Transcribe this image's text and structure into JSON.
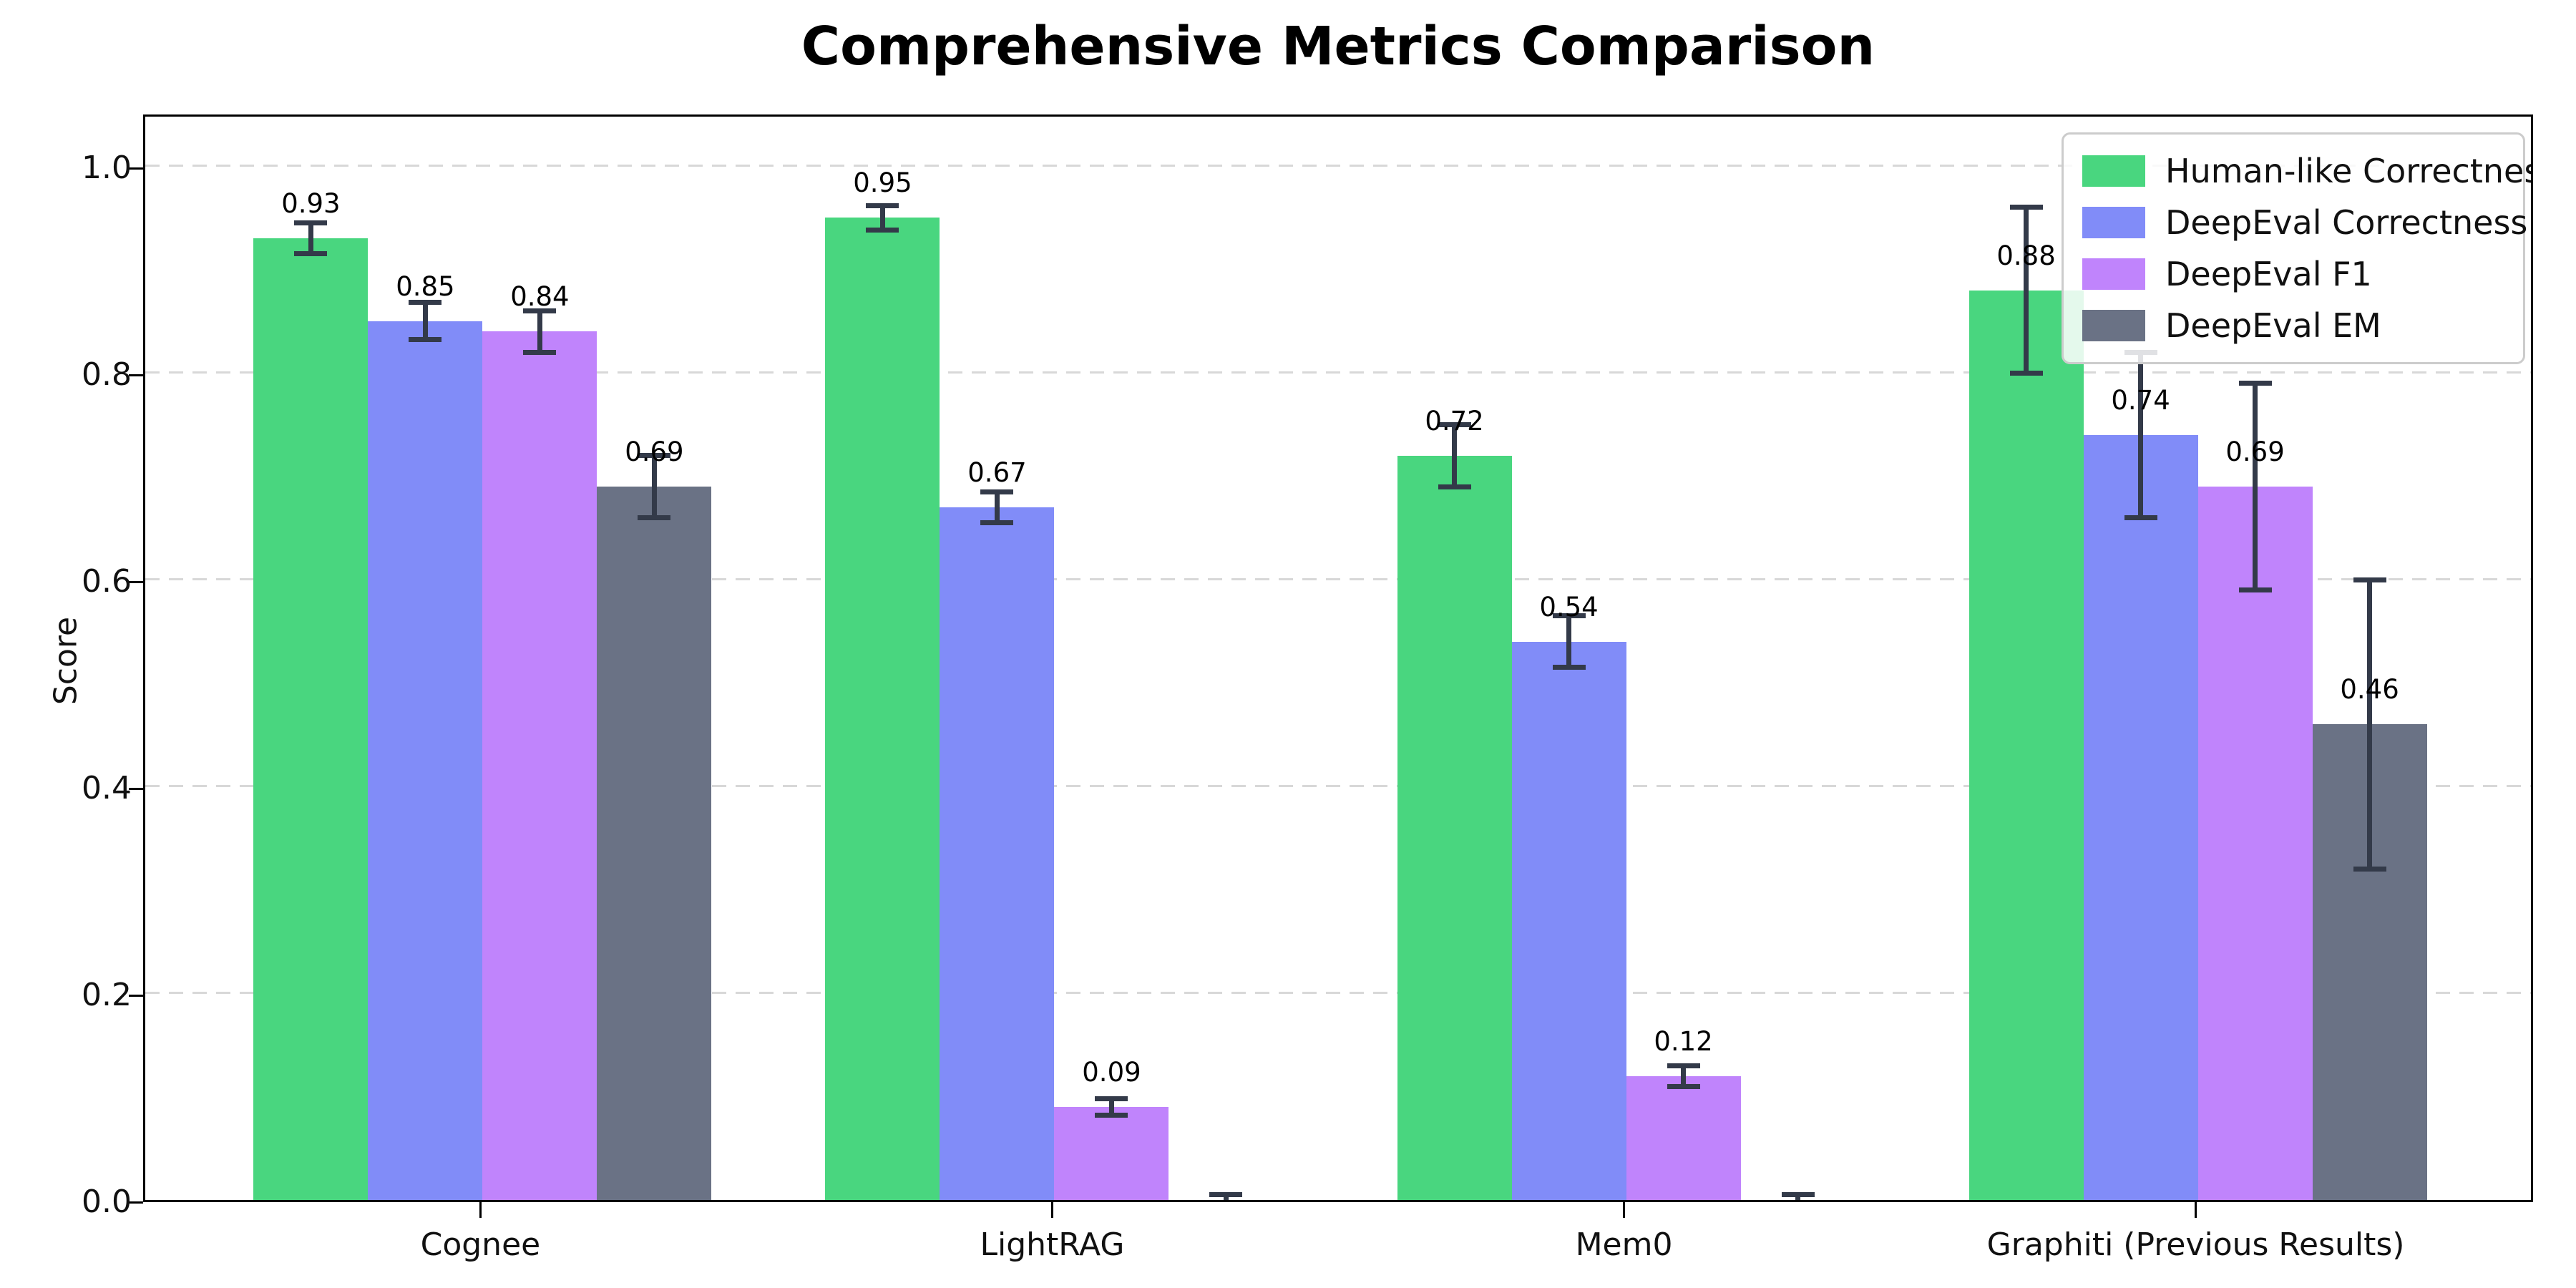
{
  "chart_data": {
    "type": "bar",
    "title": "Comprehensive Metrics Comparison",
    "ylabel": "Score",
    "xlabel": "",
    "categories": [
      "Cognee",
      "LightRAG",
      "Mem0",
      "Graphiti (Previous Results)"
    ],
    "series": [
      {
        "name": "Human-like Correctness",
        "color": "#49d67f",
        "values": [
          0.93,
          0.95,
          0.72,
          0.88
        ],
        "errors": [
          0.015,
          0.012,
          0.03,
          0.08
        ],
        "labels": [
          "0.93",
          "0.95",
          "0.72",
          "0.88"
        ]
      },
      {
        "name": "DeepEval Correctness",
        "color": "#818cf8",
        "values": [
          0.85,
          0.67,
          0.54,
          0.74
        ],
        "errors": [
          0.018,
          0.015,
          0.025,
          0.08
        ],
        "labels": [
          "0.85",
          "0.67",
          "0.54",
          "0.74"
        ]
      },
      {
        "name": "DeepEval F1",
        "color": "#c084fc",
        "values": [
          0.84,
          0.09,
          0.12,
          0.69
        ],
        "errors": [
          0.02,
          0.008,
          0.01,
          0.1
        ],
        "labels": [
          "0.84",
          "0.09",
          "0.12",
          "0.69"
        ]
      },
      {
        "name": "DeepEval EM",
        "color": "#6a7285",
        "values": [
          0.69,
          0.0,
          0.0,
          0.46
        ],
        "errors": [
          0.03,
          0.005,
          0.005,
          0.14
        ],
        "labels": [
          "0.69",
          "",
          "",
          "0.46"
        ]
      }
    ],
    "yticks": [
      "0.0",
      "0.2",
      "0.4",
      "0.6",
      "0.8",
      "1.0"
    ],
    "ylim": [
      0,
      1.052
    ],
    "grid": "horizontal-dashed",
    "legend_position": "top-right",
    "errorbar_color": "#333a49"
  }
}
